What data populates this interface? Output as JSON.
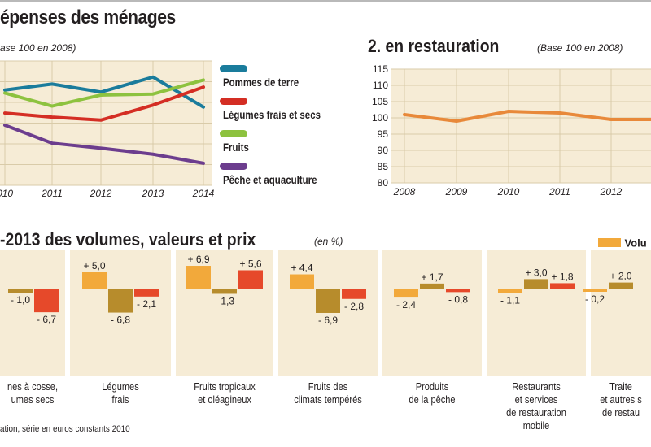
{
  "header": {
    "title1": "épenses des ménages",
    "subtitle1": "ase 100 en 2008)",
    "title2": "2. en restauration",
    "subtitle2": "(Base 100 en 2008)",
    "title3": "-2013 des volumes, valeurs et prix",
    "subtitle3": "(en %)",
    "footnote": "ation, série en euros constants 2010"
  },
  "colors": {
    "blue": "#1a7c9c",
    "red": "#d42e24",
    "green": "#8dc23f",
    "purple": "#6c3d8e",
    "orange": "#e8893a",
    "volume": "#f2a93b",
    "valeur": "#b78c2c",
    "prix": "#e6492a",
    "panel": "#f6ecd6",
    "grid": "#d9cba9"
  },
  "chart_data": [
    {
      "type": "line",
      "x": [
        "2010",
        "2011",
        "2012",
        "2013",
        "2014"
      ],
      "series": [
        {
          "name": "Pommes de terre",
          "color": "#1a7c9c",
          "values": [
            107.5,
            110.5,
            106.5,
            114,
            99
          ]
        },
        {
          "name": "Légumes frais et secs",
          "color": "#d42e24",
          "values": [
            96,
            94,
            92.5,
            100,
            109
          ]
        },
        {
          "name": "Fruits",
          "color": "#8dc23f",
          "values": [
            106,
            99.5,
            105,
            105.5,
            112.5
          ]
        },
        {
          "name": "Pêche et aquaculture",
          "color": "#6c3d8e",
          "values": [
            90,
            81,
            78.5,
            75.5,
            71
          ]
        }
      ],
      "xlabels": [
        "010",
        "2011",
        "2012",
        "2013",
        "2014"
      ],
      "legend": "right"
    },
    {
      "type": "line",
      "title": "2. en restauration",
      "x": [
        "2008",
        "2009",
        "2010",
        "2011",
        "2012",
        "2013"
      ],
      "xlabels": [
        "2008",
        "2009",
        "2010",
        "2011",
        "2012",
        ""
      ],
      "series": [
        {
          "color": "#e8893a",
          "values": [
            101,
            99,
            102,
            101.5,
            99.5,
            99.5
          ]
        }
      ],
      "yticks": [
        80,
        85,
        90,
        95,
        100,
        105,
        110,
        115
      ],
      "ylim": [
        80,
        115
      ],
      "grid": true
    },
    {
      "type": "bar",
      "legend_label": "Volu",
      "series_order": [
        "volume",
        "valeur",
        "prix"
      ],
      "groups": [
        {
          "label": "nes à cosse,\numes secs",
          "values": [
            null,
            -1.0,
            -6.7
          ],
          "labels": [
            "",
            "- 1,0",
            "- 6,7"
          ]
        },
        {
          "label": "Légumes\nfrais",
          "values": [
            5.0,
            -6.8,
            -2.1
          ],
          "labels": [
            "+ 5,0",
            "- 6,8",
            "- 2,1"
          ]
        },
        {
          "label": "Fruits tropicaux\net oléagineux",
          "values": [
            6.9,
            -1.3,
            5.6
          ],
          "labels": [
            "+ 6,9",
            "- 1,3",
            "+ 5,6"
          ]
        },
        {
          "label": "Fruits des\nclimats tempérés",
          "values": [
            4.4,
            -6.9,
            -2.8
          ],
          "labels": [
            "+ 4,4",
            "- 6,9",
            "- 2,8"
          ]
        },
        {
          "label": "Produits\nde la pêche",
          "values": [
            -2.4,
            1.7,
            -0.8
          ],
          "labels": [
            "- 2,4",
            "+ 1,7",
            "- 0,8"
          ]
        },
        {
          "label": "Restaurants\net services\nde restauration\nmobile",
          "values": [
            -1.1,
            3.0,
            1.8
          ],
          "labels": [
            "- 1,1",
            "+ 3,0",
            "+ 1,8"
          ]
        },
        {
          "label": "Traite\net autres s\nde restau",
          "values": [
            -0.2,
            2.0,
            null
          ],
          "labels": [
            "- 0,2",
            "+ 2,0",
            ""
          ]
        }
      ]
    }
  ]
}
